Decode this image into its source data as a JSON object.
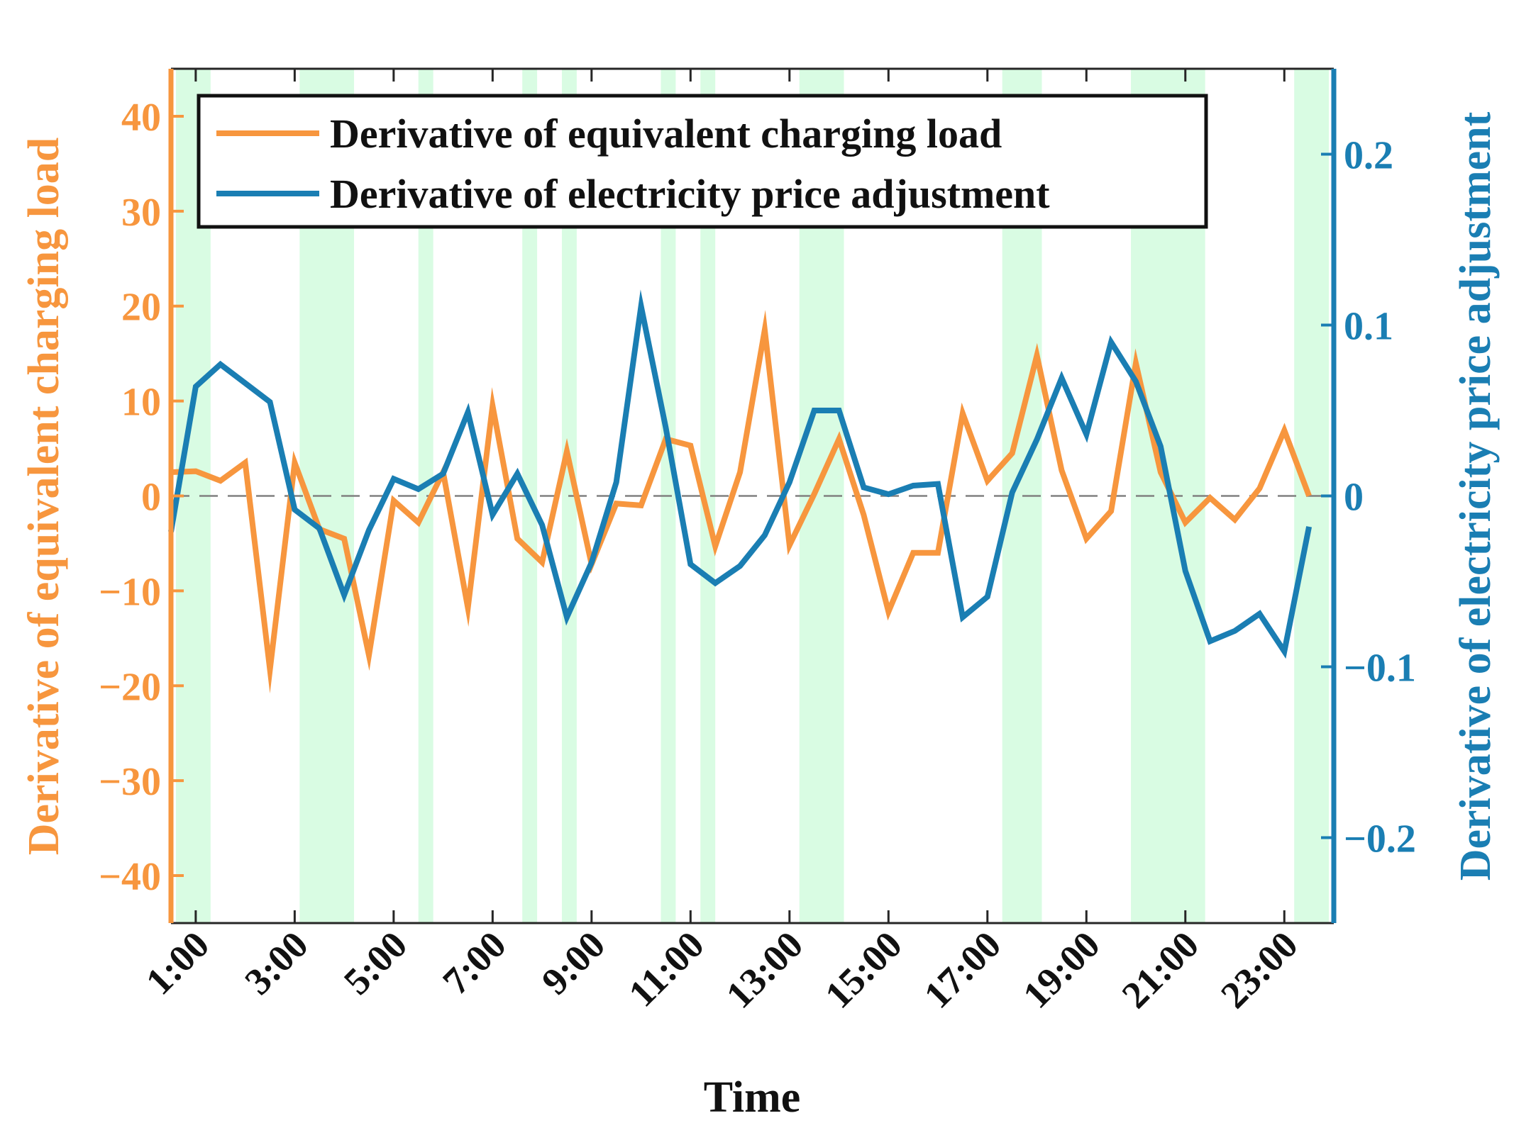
{
  "chart_data": {
    "type": "line",
    "title": "",
    "xlabel": "Time",
    "ylabel_left": "Derivative of equivalent charging load",
    "ylabel_right": "Derivative of electricity price adjustment",
    "xlim": [
      0.5,
      24
    ],
    "ylim_left": [
      -45,
      45
    ],
    "ylim_right": [
      -0.25,
      0.25
    ],
    "left_ticks": [
      -40,
      -30,
      -20,
      -10,
      0,
      10,
      20,
      30,
      40
    ],
    "left_tick_labels": [
      "−40",
      "−30",
      "−20",
      "−10",
      "0",
      "10",
      "20",
      "30",
      "40"
    ],
    "right_ticks": [
      -0.2,
      -0.1,
      0,
      0.1,
      0.2
    ],
    "right_tick_labels": [
      "−0.2",
      "−0.1",
      "0",
      "0.1",
      "0.2"
    ],
    "x_ticks": [
      1,
      3,
      5,
      7,
      9,
      11,
      13,
      15,
      17,
      19,
      21,
      23
    ],
    "x_tick_labels": [
      "1:00",
      "3:00",
      "5:00",
      "7:00",
      "9:00",
      "11:00",
      "13:00",
      "15:00",
      "17:00",
      "19:00",
      "21:00",
      "23:00"
    ],
    "x": [
      0.5,
      1,
      1.5,
      2,
      2.5,
      3,
      3.5,
      4,
      4.5,
      5,
      5.5,
      6,
      6.5,
      7,
      7.5,
      8,
      8.5,
      9,
      9.5,
      10,
      10.5,
      11,
      11.5,
      12,
      12.5,
      13,
      13.5,
      14,
      14.5,
      15,
      15.5,
      16,
      16.5,
      17,
      17.5,
      18,
      18.5,
      19,
      19.5,
      20,
      20.5,
      21,
      21.5,
      22,
      22.5,
      23,
      23.5
    ],
    "series": [
      {
        "name": "Derivative of equivalent charging load",
        "axis": "left",
        "color": "#F7963E",
        "values": [
          2.5,
          2.6,
          1.6,
          3.5,
          -18.3,
          3.5,
          -3.5,
          -4.5,
          -16.8,
          -0.5,
          -2.8,
          2.5,
          -11.8,
          9.5,
          -4.5,
          -7.0,
          4.7,
          -7.2,
          -0.8,
          -1.0,
          6.0,
          5.3,
          -5.3,
          2.5,
          17.5,
          -5.2,
          0.2,
          6.0,
          -2.0,
          -12.2,
          -6.0,
          -6.0,
          8.7,
          1.6,
          4.5,
          14.8,
          2.7,
          -4.5,
          -1.6,
          14.0,
          2.5,
          -2.8,
          -0.2,
          -2.5,
          0.8,
          6.9,
          0.0
        ]
      },
      {
        "name": "Derivative of electricity price adjustment",
        "axis": "right",
        "color": "#1A7EB3",
        "values": [
          -0.021,
          0.064,
          0.077,
          0.066,
          0.055,
          -0.008,
          -0.019,
          -0.058,
          -0.02,
          0.01,
          0.004,
          0.013,
          0.049,
          -0.011,
          0.013,
          -0.017,
          -0.071,
          -0.039,
          0.008,
          0.111,
          0.04,
          -0.04,
          -0.051,
          -0.041,
          -0.023,
          0.008,
          0.05,
          0.05,
          0.005,
          0.001,
          0.006,
          0.007,
          -0.071,
          -0.059,
          0.002,
          0.033,
          0.069,
          0.036,
          0.09,
          0.067,
          0.029,
          -0.044,
          -0.085,
          -0.079,
          -0.069,
          -0.091,
          -0.018
        ]
      }
    ],
    "shaded_intervals": [
      [
        0.6,
        1.3
      ],
      [
        3.1,
        4.2
      ],
      [
        5.5,
        5.8
      ],
      [
        7.6,
        7.9
      ],
      [
        8.4,
        8.7
      ],
      [
        10.4,
        10.7
      ],
      [
        11.2,
        11.5
      ],
      [
        13.2,
        14.1
      ],
      [
        17.3,
        18.1
      ],
      [
        19.9,
        21.4
      ],
      [
        23.2,
        23.9
      ]
    ],
    "shade_color": "#D9FCE3",
    "zero_line": "dashed gray",
    "legend_position": "top-left",
    "grid": false
  }
}
